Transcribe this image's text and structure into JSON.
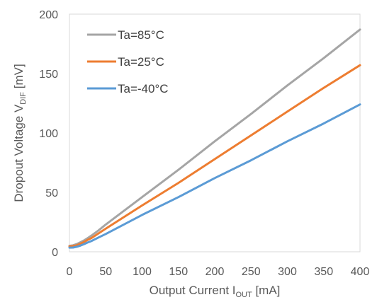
{
  "chart_data": {
    "type": "line",
    "title": "",
    "xlabel": {
      "main": "Output Current I",
      "sub": "OUT",
      "unit": " [mA]"
    },
    "ylabel": {
      "main": "Dropout Voltage V",
      "sub": "DIF",
      "unit": " [mV]"
    },
    "xlim": [
      0,
      400
    ],
    "ylim": [
      0,
      200
    ],
    "x_ticks": [
      "0",
      "50",
      "100",
      "150",
      "200",
      "250",
      "300",
      "350",
      "400"
    ],
    "y_ticks": [
      "0",
      "50",
      "100",
      "150",
      "200"
    ],
    "grid": false,
    "legend_position": "top-left",
    "x": [
      0,
      5,
      10,
      15,
      20,
      25,
      30,
      40,
      50,
      100,
      150,
      200,
      250,
      300,
      350,
      400
    ],
    "series": [
      {
        "name": "Ta=85°C",
        "color": "#A5A5A5",
        "values": [
          5,
          5.5,
          6.5,
          8,
          9.5,
          11.5,
          13.5,
          18,
          23,
          46,
          69,
          93,
          116,
          140,
          163,
          187
        ]
      },
      {
        "name": "Ta=25°C",
        "color": "#ED7D31",
        "values": [
          4.5,
          4.8,
          5.5,
          6.8,
          8.2,
          10,
          11.5,
          15.5,
          19.5,
          39,
          58,
          78,
          98,
          118,
          138,
          157
        ]
      },
      {
        "name": "Ta=-40°C",
        "color": "#5B9BD5",
        "values": [
          3.5,
          3.6,
          4.2,
          5.2,
          6.4,
          7.8,
          9,
          12,
          15,
          31,
          46,
          62,
          77,
          93,
          108,
          124
        ]
      }
    ]
  }
}
